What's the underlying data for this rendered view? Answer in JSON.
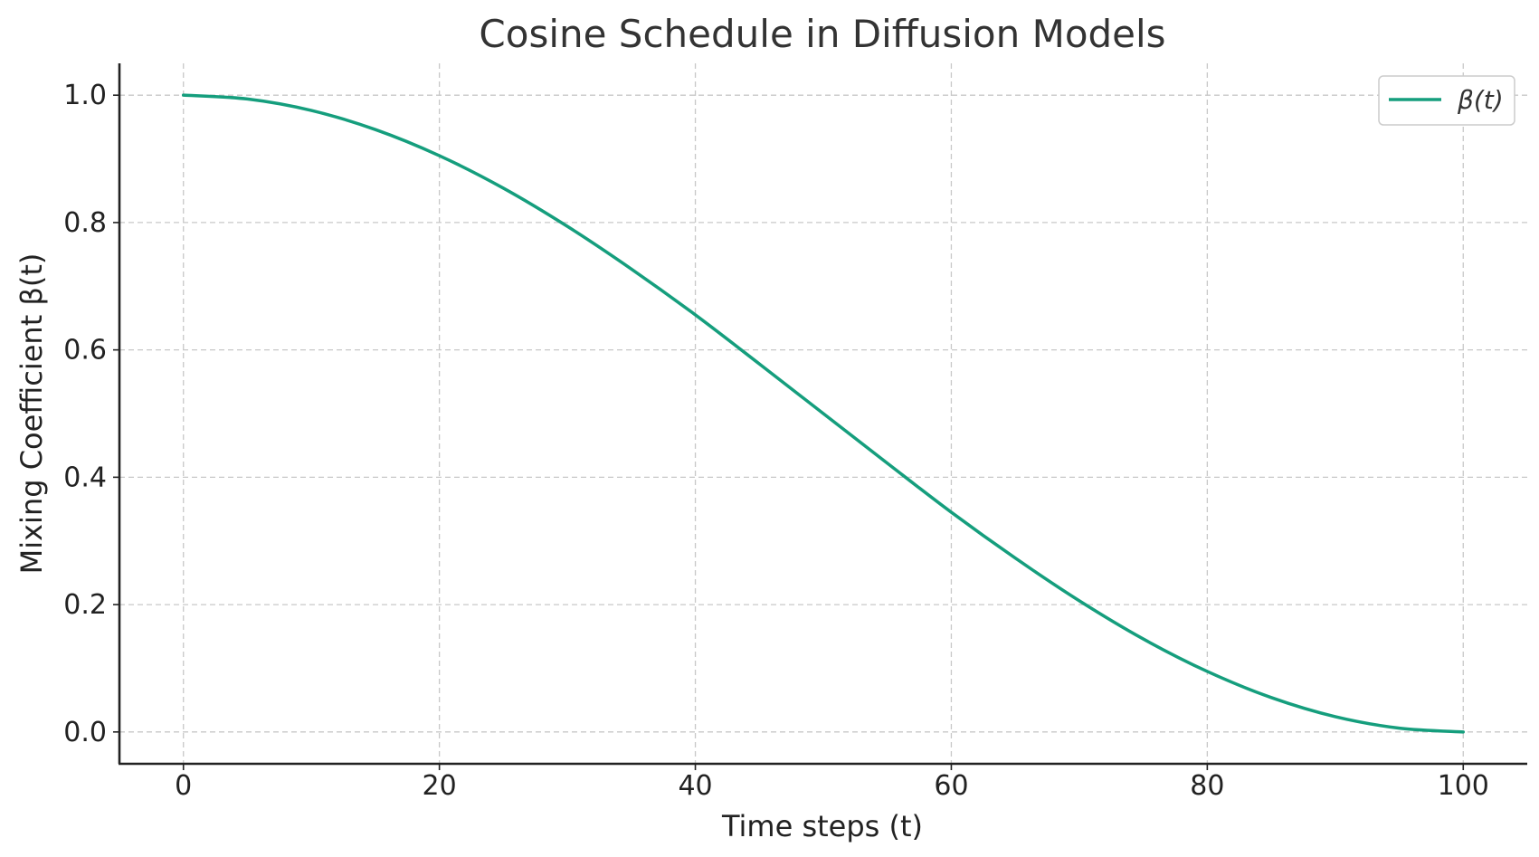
{
  "chart_data": {
    "type": "line",
    "title": "Cosine Schedule in Diffusion Models",
    "xlabel": "Time steps (t)",
    "ylabel": "Mixing Coefficient β(t)",
    "xlim": [
      -5,
      105
    ],
    "ylim": [
      -0.05,
      1.05
    ],
    "xticks": [
      0,
      20,
      40,
      60,
      80,
      100
    ],
    "yticks": [
      0.0,
      0.2,
      0.4,
      0.6,
      0.8,
      1.0
    ],
    "xtick_labels": [
      "0",
      "20",
      "40",
      "60",
      "80",
      "100"
    ],
    "ytick_labels": [
      "0.0",
      "0.2",
      "0.4",
      "0.6",
      "0.8",
      "1.0"
    ],
    "grid": true,
    "legend_position": "top-right",
    "series": [
      {
        "name": "β(t)",
        "color": "#159e7d",
        "x": [
          0,
          5,
          10,
          15,
          20,
          25,
          30,
          35,
          40,
          45,
          50,
          55,
          60,
          65,
          70,
          75,
          80,
          85,
          90,
          95,
          100
        ],
        "values": [
          1.0,
          0.994,
          0.976,
          0.946,
          0.905,
          0.854,
          0.794,
          0.727,
          0.655,
          0.578,
          0.5,
          0.422,
          0.345,
          0.273,
          0.206,
          0.146,
          0.095,
          0.054,
          0.024,
          0.006,
          0.0
        ]
      }
    ]
  }
}
